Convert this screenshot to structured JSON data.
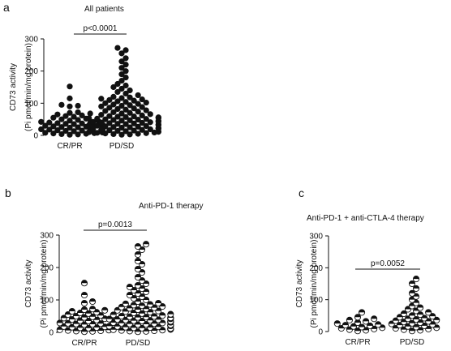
{
  "chart_data": [
    {
      "type": "scatter",
      "panel": "a",
      "title": "All patients",
      "ylabel_line1": "CD73 activity",
      "ylabel_line2": "(Pi pmol/min/mg protein)",
      "categories": [
        "CR/PR",
        "PD/SD"
      ],
      "yticks": [
        "0",
        "100",
        "200",
        "300"
      ],
      "ylim": [
        0,
        300
      ],
      "pvalue": "p<0.0001",
      "marker": "filled",
      "series": [
        {
          "values": [
            2,
            3,
            4,
            5,
            6,
            7,
            8,
            9,
            10,
            10,
            11,
            12,
            13,
            14,
            15,
            15,
            16,
            17,
            18,
            19,
            20,
            20,
            21,
            22,
            23,
            24,
            25,
            25,
            26,
            27,
            28,
            29,
            30,
            30,
            31,
            32,
            33,
            34,
            35,
            36,
            37,
            38,
            39,
            40,
            42,
            44,
            46,
            48,
            50,
            52,
            55,
            58,
            60,
            62,
            65,
            68,
            70,
            72,
            90,
            92,
            95,
            115,
            152
          ]
        },
        {
          "values": [
            2,
            3,
            4,
            5,
            6,
            7,
            8,
            9,
            10,
            11,
            12,
            13,
            14,
            15,
            16,
            17,
            18,
            19,
            20,
            21,
            22,
            23,
            24,
            25,
            26,
            27,
            28,
            29,
            30,
            31,
            32,
            33,
            34,
            35,
            36,
            37,
            38,
            39,
            40,
            41,
            42,
            43,
            44,
            45,
            46,
            47,
            48,
            49,
            50,
            51,
            52,
            53,
            54,
            55,
            56,
            57,
            58,
            59,
            60,
            62,
            64,
            66,
            68,
            70,
            72,
            74,
            76,
            78,
            80,
            82,
            84,
            86,
            88,
            90,
            92,
            94,
            96,
            98,
            100,
            102,
            104,
            106,
            108,
            110,
            112,
            114,
            116,
            118,
            120,
            125,
            130,
            135,
            140,
            145,
            150,
            155,
            160,
            170,
            180,
            190,
            200,
            210,
            220,
            230,
            240,
            255,
            265,
            272
          ]
        }
      ]
    },
    {
      "type": "scatter",
      "panel": "b",
      "title": "Anti-PD-1 therapy",
      "ylabel_line1": "CD73 activity",
      "ylabel_line2": "(Pi pmol/min/mg protein)",
      "categories": [
        "CR/PR",
        "PD/SD"
      ],
      "yticks": [
        "0",
        "100",
        "200",
        "300"
      ],
      "ylim": [
        0,
        300
      ],
      "pvalue": "p=0.0013",
      "marker": "half",
      "series": [
        {
          "values": [
            2,
            3,
            4,
            5,
            6,
            7,
            8,
            9,
            10,
            11,
            12,
            13,
            14,
            15,
            16,
            17,
            18,
            19,
            20,
            21,
            22,
            23,
            24,
            25,
            26,
            27,
            28,
            29,
            30,
            31,
            32,
            33,
            34,
            35,
            36,
            38,
            40,
            42,
            44,
            46,
            48,
            50,
            52,
            55,
            58,
            60,
            62,
            65,
            68,
            70,
            72,
            90,
            95,
            115,
            152
          ]
        },
        {
          "values": [
            2,
            3,
            4,
            5,
            6,
            7,
            8,
            9,
            10,
            11,
            12,
            13,
            14,
            15,
            16,
            17,
            18,
            19,
            20,
            21,
            22,
            23,
            24,
            25,
            26,
            27,
            28,
            29,
            30,
            31,
            32,
            33,
            34,
            35,
            36,
            37,
            38,
            39,
            40,
            41,
            42,
            43,
            44,
            45,
            46,
            47,
            48,
            49,
            50,
            52,
            54,
            56,
            58,
            60,
            62,
            64,
            66,
            68,
            70,
            72,
            74,
            76,
            78,
            80,
            82,
            84,
            86,
            88,
            90,
            95,
            100,
            105,
            110,
            115,
            120,
            125,
            130,
            135,
            140,
            145,
            150,
            160,
            170,
            185,
            195,
            210,
            220,
            240,
            255,
            265,
            272
          ]
        }
      ]
    },
    {
      "type": "scatter",
      "panel": "c",
      "title": "Anti-PD-1 + anti-CTLA-4 therapy",
      "ylabel_line1": "CD73 activity",
      "ylabel_line2": "(Pi pmol/min/mg protein)",
      "categories": [
        "CR/PR",
        "PD/SD"
      ],
      "yticks": [
        "0",
        "100",
        "200",
        "300"
      ],
      "ylim": [
        0,
        300
      ],
      "pvalue": "p=0.0052",
      "marker": "half",
      "series": [
        {
          "values": [
            2,
            4,
            6,
            8,
            10,
            12,
            14,
            16,
            18,
            20,
            22,
            25,
            28,
            32,
            36,
            40,
            45,
            60
          ]
        },
        {
          "values": [
            2,
            4,
            6,
            8,
            10,
            12,
            14,
            16,
            18,
            20,
            22,
            24,
            26,
            28,
            30,
            32,
            34,
            36,
            38,
            40,
            42,
            45,
            48,
            50,
            53,
            56,
            60,
            65,
            70,
            75,
            80,
            90,
            100,
            110,
            120,
            135,
            150,
            165
          ]
        }
      ]
    }
  ]
}
